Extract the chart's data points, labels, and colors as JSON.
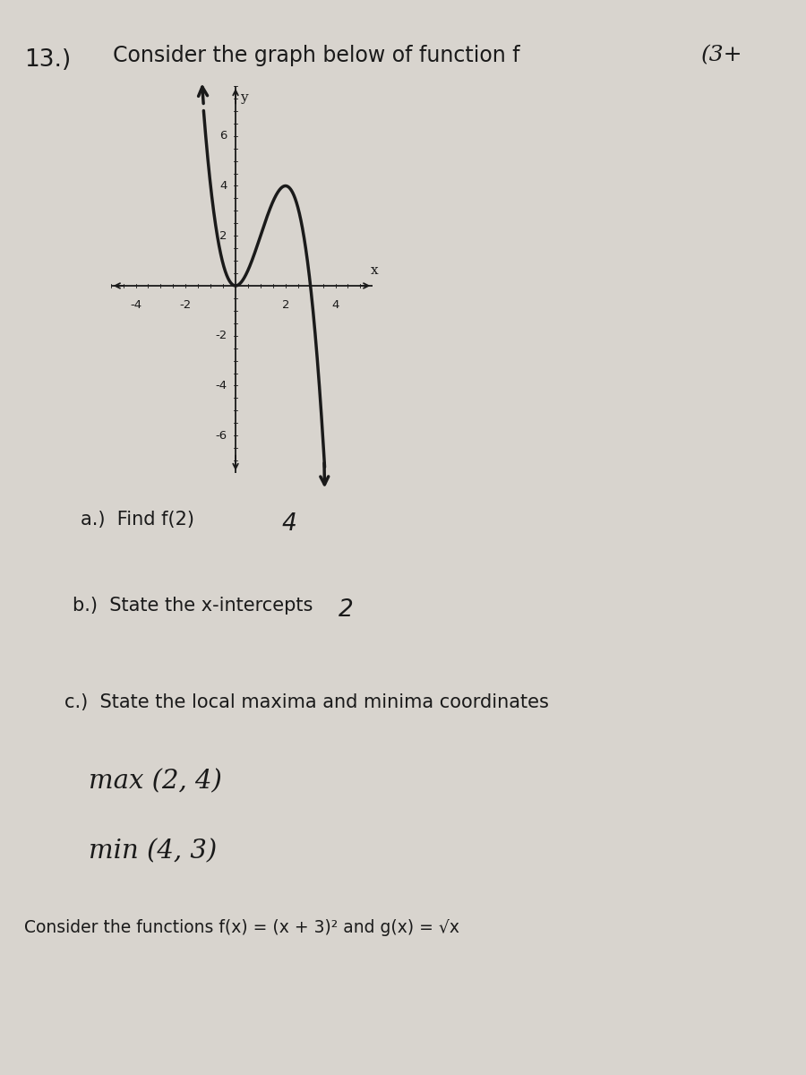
{
  "title_num": "13.)",
  "title_text": "Consider the graph below of function f",
  "problem_label": "(3+",
  "bg_color": "#d8d4ce",
  "paper_color": "#e8e6e1",
  "curve_color": "#1a1a1a",
  "axis_color": "#1a1a1a",
  "font_color": "#1a1a1a",
  "part_a_label": "a.)  Find f(2)",
  "part_a_answer": "4",
  "part_b_label": "b.)  State the x-intercepts",
  "part_b_answer": "2",
  "part_c_label": "c.)  State the local maxima and minima coordinates",
  "part_c_max": "max (2, 4)",
  "part_c_min": "min (4, 3)",
  "bottom_text": "Consider the functions f(x) = (x + 3)² and g(x) = √x",
  "axis_xlim": [
    -5.0,
    5.5
  ],
  "axis_ylim": [
    -7.5,
    8.0
  ],
  "xticks": [
    -4,
    -2,
    2,
    4
  ],
  "yticks": [
    -6,
    -4,
    -2,
    2,
    4,
    6
  ]
}
